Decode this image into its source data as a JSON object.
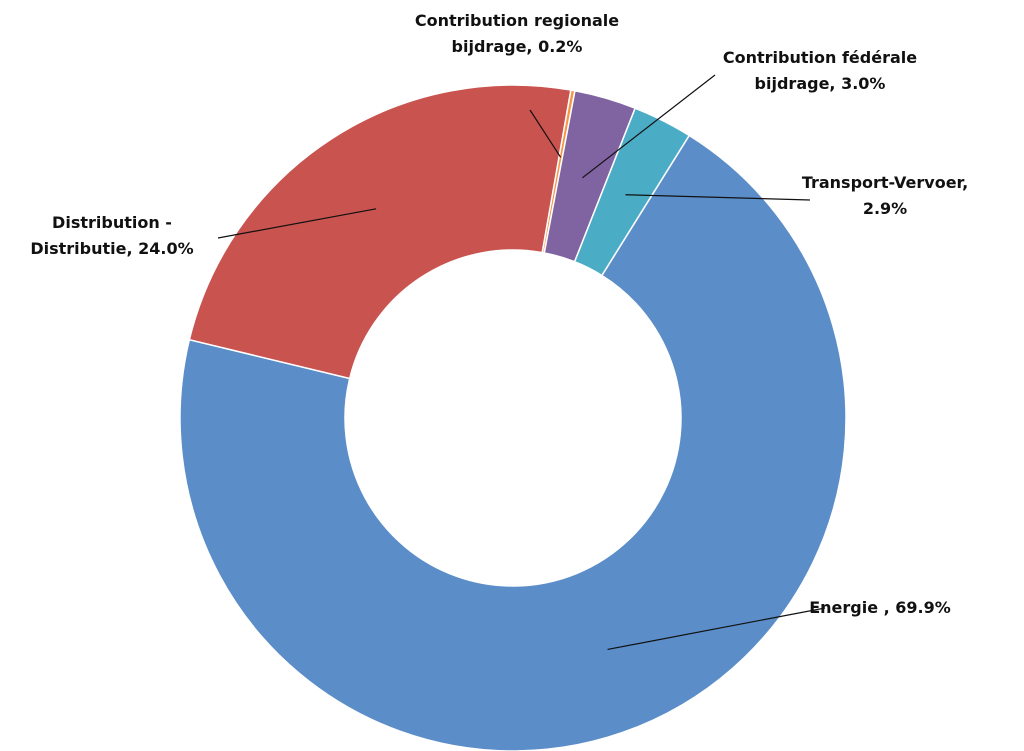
{
  "chart_data": {
    "type": "donut",
    "categories": [
      "Contribution regionale bijdrage,",
      "Contribution fédérale bijdrage,",
      "Transport-Vervoer,",
      "Energie ,",
      "Distribution - Distributie,"
    ],
    "values": [
      0.2,
      3.0,
      2.9,
      69.9,
      24.0
    ],
    "value_labels": [
      "0.2%",
      "3.0%",
      "2.9%",
      "69.9%",
      "24.0%"
    ],
    "colors": [
      "#f79646",
      "#8064a2",
      "#4bacc6",
      "#5b8dc9",
      "#c9534f"
    ]
  }
}
